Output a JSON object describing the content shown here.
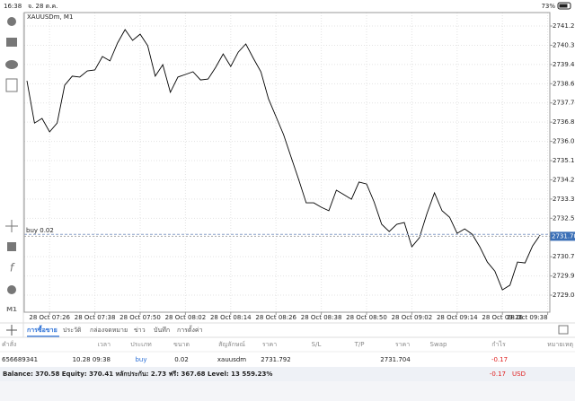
{
  "status_bar": {
    "time": "16:38",
    "date": "จ. 28 ต.ค.",
    "battery": "73%"
  },
  "chart_data": {
    "type": "line",
    "title": "XAUUSDm, M1",
    "categories": [
      null,
      null,
      null,
      "28 Oct 07:26",
      null,
      null,
      null,
      null,
      null,
      "28 Oct 07:38",
      null,
      null,
      null,
      null,
      null,
      "28 Oct 07:50",
      null,
      null,
      null,
      null,
      null,
      "28 Oct 08:02",
      null,
      null,
      null,
      null,
      null,
      "28 Oct 08:14",
      null,
      null,
      null,
      null,
      null,
      "28 Oct 08:26",
      null,
      null,
      null,
      null,
      null,
      "28 Oct 08:38",
      null,
      null,
      null,
      null,
      null,
      "28 Oct 08:50",
      null,
      null,
      null,
      null,
      null,
      "28 Oct 09:02",
      null,
      null,
      null,
      null,
      null,
      "28 Oct 09:14",
      null,
      null,
      null,
      null,
      null,
      "28 Oct 09:26",
      null,
      null,
      null,
      null,
      null,
      "28 Oct 09:38"
    ],
    "series": [
      {
        "name": "XAUUSDm",
        "color": "#000000",
        "values": [
          2738.74,
          2736.83,
          2737.04,
          2736.43,
          2736.83,
          2738.54,
          2738.95,
          2738.91,
          2739.19,
          2739.23,
          2739.84,
          2739.64,
          2740.45,
          2741.06,
          2740.57,
          2740.85,
          2740.33,
          2738.95,
          2739.47,
          2738.22,
          2738.91,
          2739.03,
          2739.15,
          2738.78,
          2738.82,
          2739.35,
          2739.96,
          2739.39,
          2740.04,
          2740.41,
          2739.76,
          2739.15,
          2737.93,
          2737.12,
          2736.31,
          2735.29,
          2734.28,
          2733.22,
          2733.22,
          2733.02,
          2732.86,
          2733.79,
          2733.59,
          2733.38,
          2734.16,
          2734.07,
          2733.26,
          2732.25,
          2731.92,
          2732.25,
          2732.33,
          2731.23,
          2731.64,
          2732.73,
          2733.67,
          2732.86,
          2732.57,
          2731.84,
          2732.04,
          2731.8,
          2731.23,
          2730.54,
          2730.13,
          2729.28,
          2729.49,
          2730.54,
          2730.5,
          2731.27,
          2731.76,
          null
        ]
      }
    ],
    "ylim": [
      2728.27,
      2741.83
    ],
    "yticks": [
      {
        "value": 2741.22,
        "label": "2741.220"
      },
      {
        "value": 2740.35,
        "label": "2740.350"
      },
      {
        "value": 2739.48,
        "label": "2739.480"
      },
      {
        "value": 2738.61,
        "label": "2738.610"
      },
      {
        "value": 2737.74,
        "label": "2737.740"
      },
      {
        "value": 2736.87,
        "label": "2736.870"
      },
      {
        "value": 2736.0,
        "label": "2736.000"
      },
      {
        "value": 2735.13,
        "label": "2735.130"
      },
      {
        "value": 2734.26,
        "label": "2734.260"
      },
      {
        "value": 2733.39,
        "label": "2733.390"
      },
      {
        "value": 2732.52,
        "label": "2732.520"
      },
      {
        "value": 2730.78,
        "label": "2730.780"
      },
      {
        "value": 2729.91,
        "label": "2729.910"
      },
      {
        "value": 2729.04,
        "label": "2729.040"
      }
    ],
    "current_price": 2731.704,
    "position_label": "buy 0.02",
    "grid": true
  },
  "left_toolbar": {
    "timeframe": "M1"
  },
  "tabs": [
    "การซื้อขาย",
    "ประวัติ",
    "กล่องจดหมาย",
    "ข่าว",
    "บันทึก",
    "การตั้งค่า"
  ],
  "table": {
    "headers": [
      "คำสั่ง",
      "เวลา",
      "ประเภท",
      "ขนาด",
      "สัญลักษณ์",
      "ราคา",
      "S/L",
      "T/P",
      "ราคา",
      "Swap",
      "กำไร",
      "หมายเหตุ"
    ],
    "rows": [
      {
        "order": "656689341",
        "time": "10.28 09:38",
        "type": "buy",
        "volume": "0.02",
        "symbol": "xauusdm",
        "open_price": 2731.792,
        "price": 2731.704,
        "profit": -0.17
      }
    ]
  },
  "balance": {
    "text": "Balance: 370.58 Equity: 370.41 หลักประกัน: 2.73 ฟรี: 367.68 Level: 13 559.23%",
    "profit": -0.17,
    "currency": "USD"
  }
}
